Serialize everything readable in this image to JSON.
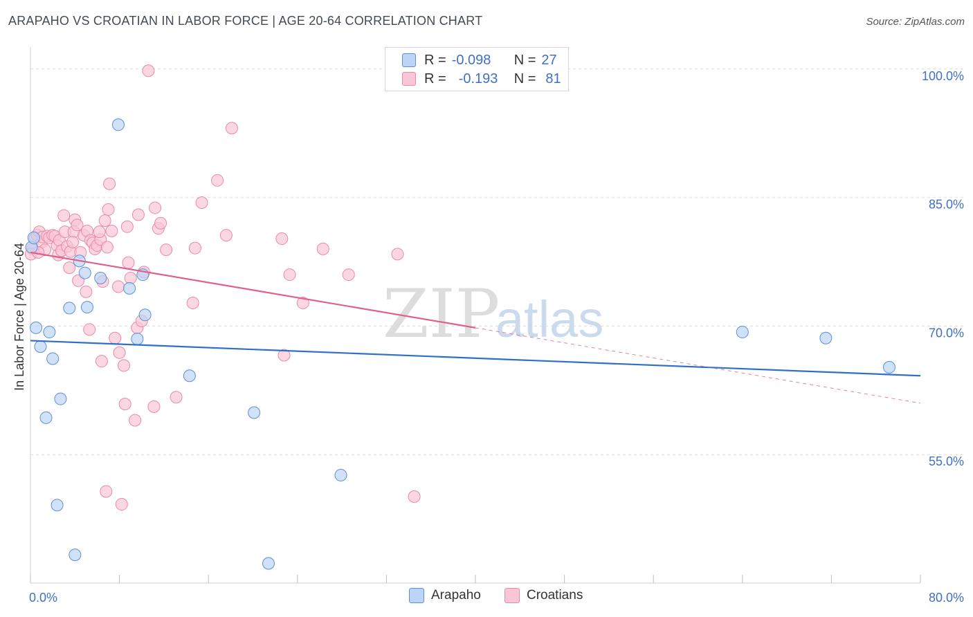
{
  "header": {
    "title": "ARAPAHO VS CROATIAN IN LABOR FORCE | AGE 20-64 CORRELATION CHART",
    "source": "Source: ZipAtlas.com"
  },
  "watermark": {
    "part1": "ZIP",
    "part2": "atlas"
  },
  "legend": {
    "rows": [
      {
        "series": "Arapaho",
        "r_label": "R =",
        "r_value": "-0.098",
        "n_label": "N =",
        "n_value": "27"
      },
      {
        "series": "Croatians",
        "r_label": "R =",
        "r_value": "-0.193",
        "n_label": "N =",
        "n_value": "81"
      }
    ]
  },
  "bottom_legend": {
    "items": [
      "Arapaho",
      "Croatians"
    ]
  },
  "colors": {
    "arapaho_fill": "#bcd4f5",
    "arapaho_stroke": "#5b8fd6",
    "arapaho_line": "#2f6fcb",
    "croatian_fill": "#f9c6d6",
    "croatian_stroke": "#e88aa8",
    "croatian_line": "#e0608a",
    "axis_label": "#3f6fc6",
    "grid": "#dcdcdc"
  },
  "chart_data": {
    "type": "scatter",
    "title": "ARAPAHO VS CROATIAN IN LABOR FORCE | AGE 20-64 CORRELATION CHART",
    "xlabel": "",
    "ylabel": "In Labor Force | Age 20-64",
    "xlim": [
      0,
      80
    ],
    "ylim": [
      40,
      102
    ],
    "x_tick_labels": [
      {
        "value": 0,
        "label": "0.0%"
      },
      {
        "value": 80,
        "label": "80.0%"
      }
    ],
    "y_ticks": [
      {
        "value": 55,
        "label": "55.0%"
      },
      {
        "value": 70,
        "label": "70.0%"
      },
      {
        "value": 85,
        "label": "85.0%"
      },
      {
        "value": 100,
        "label": "100.0%"
      }
    ],
    "x_minor_ticks": [
      0,
      8,
      16,
      24,
      32,
      40,
      48,
      56,
      64,
      72,
      80
    ],
    "series": [
      {
        "name": "Arapaho",
        "r": -0.098,
        "n": 27,
        "trend": {
          "x0": 0,
          "y0": 68.3,
          "x1": 80,
          "y1": 64.2,
          "dashed_from": null
        },
        "points": [
          [
            0.1,
            79.2
          ],
          [
            0.5,
            69.8
          ],
          [
            0.9,
            67.6
          ],
          [
            1.7,
            69.3
          ],
          [
            2.0,
            66.2
          ],
          [
            2.7,
            61.5
          ],
          [
            1.4,
            59.3
          ],
          [
            2.4,
            49.1
          ],
          [
            3.5,
            72.1
          ],
          [
            4.4,
            77.6
          ],
          [
            4.9,
            76.2
          ],
          [
            5.1,
            72.2
          ],
          [
            6.3,
            75.6
          ],
          [
            7.9,
            93.5
          ],
          [
            8.9,
            74.4
          ],
          [
            10.1,
            76.0
          ],
          [
            10.3,
            71.3
          ],
          [
            9.6,
            68.5
          ],
          [
            14.3,
            64.2
          ],
          [
            20.1,
            59.9
          ],
          [
            21.4,
            42.3
          ],
          [
            27.9,
            52.6
          ],
          [
            4.0,
            43.3
          ],
          [
            64.0,
            69.3
          ],
          [
            71.5,
            68.6
          ],
          [
            77.2,
            65.2
          ],
          [
            0.3,
            80.3
          ]
        ]
      },
      {
        "name": "Croatians",
        "r": -0.193,
        "n": 81,
        "trend": {
          "x0": 0,
          "y0": 78.6,
          "x1": 80,
          "y1": 61.0,
          "dashed_from": 40
        },
        "points": [
          [
            0.2,
            79.0
          ],
          [
            0.4,
            80.2
          ],
          [
            0.6,
            80.6
          ],
          [
            0.8,
            81.0
          ],
          [
            1.0,
            79.8
          ],
          [
            1.1,
            80.4
          ],
          [
            1.3,
            78.9
          ],
          [
            1.5,
            80.5
          ],
          [
            1.7,
            80.3
          ],
          [
            2.0,
            80.6
          ],
          [
            2.2,
            80.5
          ],
          [
            2.4,
            79.4
          ],
          [
            2.5,
            78.3
          ],
          [
            2.6,
            80.0
          ],
          [
            2.8,
            78.8
          ],
          [
            3.0,
            82.9
          ],
          [
            3.1,
            81.0
          ],
          [
            3.3,
            79.3
          ],
          [
            3.5,
            76.8
          ],
          [
            3.6,
            78.7
          ],
          [
            3.9,
            81.0
          ],
          [
            4.0,
            82.4
          ],
          [
            4.2,
            81.8
          ],
          [
            4.3,
            75.3
          ],
          [
            4.5,
            78.6
          ],
          [
            4.8,
            80.6
          ],
          [
            5.0,
            74.0
          ],
          [
            5.1,
            81.1
          ],
          [
            5.3,
            69.6
          ],
          [
            5.4,
            80.0
          ],
          [
            5.6,
            79.7
          ],
          [
            5.8,
            79.0
          ],
          [
            6.0,
            79.4
          ],
          [
            6.3,
            80.1
          ],
          [
            6.4,
            65.9
          ],
          [
            6.5,
            75.2
          ],
          [
            6.7,
            82.3
          ],
          [
            6.8,
            50.7
          ],
          [
            6.9,
            79.2
          ],
          [
            7.0,
            83.6
          ],
          [
            7.1,
            86.6
          ],
          [
            7.3,
            81.1
          ],
          [
            7.6,
            68.6
          ],
          [
            7.9,
            74.6
          ],
          [
            8.0,
            66.9
          ],
          [
            8.2,
            49.2
          ],
          [
            8.4,
            65.4
          ],
          [
            8.5,
            60.9
          ],
          [
            8.7,
            81.6
          ],
          [
            8.8,
            77.4
          ],
          [
            9.0,
            75.6
          ],
          [
            9.4,
            59.0
          ],
          [
            9.6,
            69.8
          ],
          [
            9.7,
            83.0
          ],
          [
            10.0,
            70.6
          ],
          [
            10.2,
            76.3
          ],
          [
            10.6,
            99.8
          ],
          [
            11.1,
            60.6
          ],
          [
            11.2,
            83.8
          ],
          [
            11.5,
            81.4
          ],
          [
            11.7,
            82.0
          ],
          [
            12.2,
            78.9
          ],
          [
            13.1,
            61.7
          ],
          [
            14.6,
            72.7
          ],
          [
            14.8,
            79.1
          ],
          [
            15.4,
            84.4
          ],
          [
            16.8,
            87.0
          ],
          [
            17.6,
            80.6
          ],
          [
            18.1,
            93.1
          ],
          [
            22.6,
            80.2
          ],
          [
            22.8,
            66.6
          ],
          [
            23.3,
            76.0
          ],
          [
            24.5,
            72.7
          ],
          [
            26.3,
            79.0
          ],
          [
            28.6,
            76.0
          ],
          [
            33.0,
            78.4
          ],
          [
            34.5,
            50.1
          ],
          [
            0.05,
            78.4
          ],
          [
            0.7,
            78.6
          ],
          [
            6.2,
            81.0
          ],
          [
            3.8,
            79.8
          ]
        ]
      }
    ]
  }
}
